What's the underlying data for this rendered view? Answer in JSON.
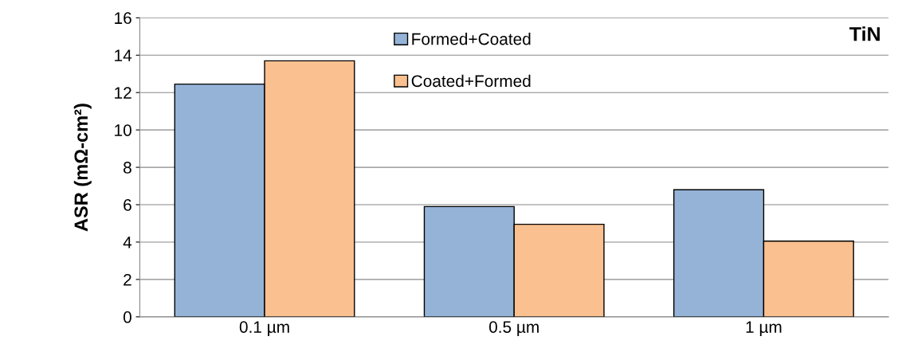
{
  "chart_data": {
    "type": "bar",
    "ylabel": "ASR (mΩ-cm²)",
    "categories": [
      "0.1 µm",
      "0.5 µm",
      "1 µm"
    ],
    "series": [
      {
        "name": "Formed+Coated",
        "color": "#95b3d7",
        "values": [
          12.45,
          5.9,
          6.8
        ]
      },
      {
        "name": "Coated+Formed",
        "color": "#fac090",
        "values": [
          13.7,
          4.95,
          4.05
        ]
      }
    ],
    "ylim": [
      0,
      16
    ],
    "yticks": [
      0,
      2,
      4,
      6,
      8,
      10,
      12,
      14,
      16
    ],
    "grid": "y",
    "legend": "top",
    "annotations": [
      "TiN"
    ]
  }
}
